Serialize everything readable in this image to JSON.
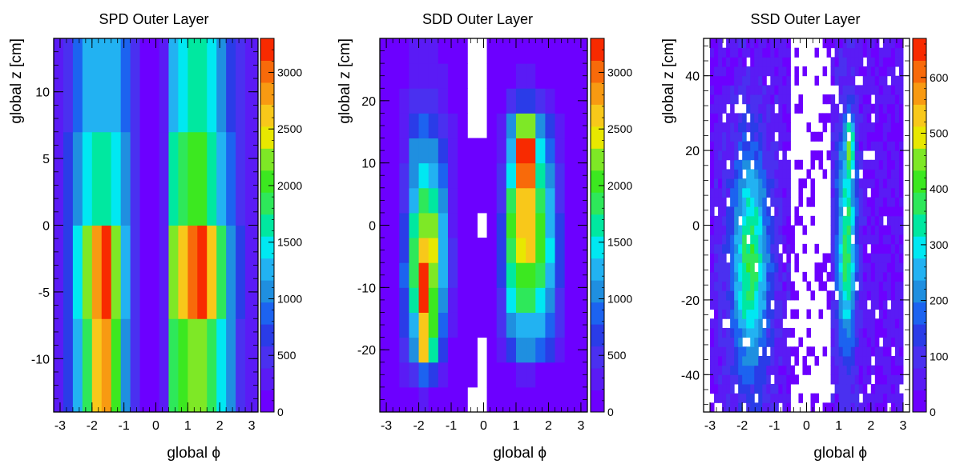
{
  "palette": [
    "#6c00ff",
    "#5a1bf5",
    "#4a30f0",
    "#2a3ce8",
    "#1c63f0",
    "#1f8fe0",
    "#22b2f2",
    "#00e8f2",
    "#00e8a0",
    "#2ee85a",
    "#3ce820",
    "#7ee826",
    "#e8e800",
    "#f8c81a",
    "#f89a12",
    "#f86a0a",
    "#f82a00"
  ],
  "chart_data": [
    {
      "type": "heatmap",
      "title": "SPD Outer Layer",
      "xlabel": "global  ϕ",
      "ylabel": "global z [cm]",
      "xlim": [
        -3.2,
        3.2
      ],
      "ylim": [
        -14,
        14
      ],
      "xticks": [
        "-3",
        "-2",
        "-1",
        "0",
        "1",
        "2",
        "3"
      ],
      "yticks": [
        "-10",
        "-5",
        "0",
        "5",
        "10"
      ],
      "colorbar": {
        "max": 3300,
        "ticks": [
          "0",
          "500",
          "1000",
          "1500",
          "2000",
          "2500",
          "3000"
        ]
      },
      "x_edges": [
        -3.2,
        -2.9,
        -2.6,
        -2.3,
        -2.0,
        -1.7,
        -1.4,
        -1.1,
        -0.8,
        -0.5,
        -0.2,
        0.1,
        0.4,
        0.7,
        1.0,
        1.3,
        1.6,
        1.9,
        2.2,
        2.5,
        2.8,
        3.2
      ],
      "y_edges": [
        -14,
        -7,
        0,
        7,
        14
      ],
      "values": [
        [
          200,
          600,
          1200,
          1900,
          2600,
          2900,
          2000,
          1100,
          400,
          150,
          150,
          300,
          1900,
          2100,
          2200,
          2200,
          1900,
          1500,
          1000,
          500,
          200
        ],
        [
          250,
          700,
          1400,
          2200,
          2800,
          3300,
          2300,
          1300,
          500,
          150,
          150,
          350,
          2300,
          2700,
          3000,
          3300,
          2700,
          1800,
          1100,
          600,
          200
        ],
        [
          200,
          600,
          1000,
          1500,
          1700,
          1700,
          1500,
          1000,
          400,
          150,
          150,
          250,
          1600,
          1800,
          2000,
          2000,
          1700,
          1300,
          800,
          400,
          200
        ],
        [
          200,
          500,
          900,
          1200,
          1300,
          1200,
          1200,
          900,
          400,
          150,
          150,
          200,
          1200,
          1500,
          1700,
          1700,
          1400,
          1100,
          700,
          400,
          200
        ]
      ]
    },
    {
      "type": "heatmap",
      "title": "SDD Outer Layer",
      "xlabel": "global  ϕ",
      "ylabel": "global z [cm]",
      "xlim": [
        -3.2,
        3.2
      ],
      "ylim": [
        -30,
        30
      ],
      "xticks": [
        "-3",
        "-2",
        "-1",
        "0",
        "1",
        "2",
        "3"
      ],
      "yticks": [
        "-20",
        "-10",
        "0",
        "10",
        "20"
      ],
      "colorbar": {
        "max": 3300,
        "ticks": [
          "0",
          "500",
          "1000",
          "1500",
          "2000",
          "2500",
          "3000"
        ]
      },
      "x_edges": [
        -3.2,
        -2.9,
        -2.6,
        -2.3,
        -2.0,
        -1.7,
        -1.4,
        -1.1,
        -0.8,
        -0.5,
        -0.2,
        0.1,
        0.4,
        0.7,
        1.0,
        1.3,
        1.6,
        1.9,
        2.2,
        2.5,
        2.8,
        3.2
      ],
      "y_edges": [
        -30,
        -26,
        -22,
        -18,
        -14,
        -10,
        -6,
        -2,
        2,
        6,
        10,
        14,
        18,
        22,
        26,
        30
      ],
      "values": [
        [
          100,
          100,
          100,
          150,
          250,
          150,
          100,
          100,
          100,
          0,
          0,
          100,
          100,
          100,
          100,
          100,
          100,
          100,
          100,
          100,
          100
        ],
        [
          100,
          100,
          200,
          500,
          900,
          700,
          200,
          100,
          100,
          100,
          0,
          100,
          100,
          150,
          250,
          250,
          150,
          100,
          100,
          100,
          100
        ],
        [
          100,
          100,
          500,
          1100,
          2600,
          1700,
          600,
          100,
          100,
          100,
          0,
          100,
          300,
          700,
          1100,
          1100,
          900,
          600,
          300,
          100,
          100
        ],
        [
          100,
          100,
          600,
          1300,
          2700,
          2000,
          900,
          200,
          100,
          100,
          100,
          100,
          400,
          1100,
          1300,
          1300,
          1200,
          800,
          400,
          100,
          100
        ],
        [
          100,
          100,
          700,
          1600,
          3200,
          2100,
          1000,
          300,
          100,
          100,
          100,
          100,
          500,
          1400,
          1800,
          1800,
          1500,
          1000,
          500,
          100,
          100
        ],
        [
          100,
          100,
          800,
          1800,
          3300,
          2300,
          1200,
          400,
          100,
          100,
          100,
          100,
          600,
          1700,
          2100,
          2100,
          1800,
          1300,
          600,
          100,
          100
        ],
        [
          100,
          100,
          700,
          1800,
          2600,
          2400,
          1300,
          400,
          100,
          100,
          100,
          100,
          600,
          1900,
          2500,
          2600,
          2000,
          1400,
          600,
          100,
          100
        ],
        [
          100,
          100,
          600,
          1700,
          2200,
          2200,
          1300,
          300,
          100,
          100,
          0,
          100,
          600,
          2000,
          2600,
          2700,
          2000,
          1300,
          600,
          100,
          100
        ],
        [
          100,
          100,
          500,
          1300,
          1800,
          1700,
          1000,
          300,
          100,
          100,
          100,
          100,
          500,
          1800,
          2600,
          2700,
          1800,
          1200,
          500,
          100,
          100
        ],
        [
          100,
          100,
          400,
          1100,
          1400,
          1300,
          800,
          200,
          100,
          100,
          100,
          100,
          400,
          1400,
          3000,
          3000,
          1700,
          1000,
          400,
          100,
          100
        ],
        [
          100,
          100,
          300,
          1000,
          1100,
          1000,
          700,
          200,
          100,
          100,
          100,
          100,
          300,
          1200,
          3200,
          3200,
          1500,
          800,
          300,
          100,
          100
        ],
        [
          100,
          100,
          300,
          700,
          800,
          700,
          500,
          200,
          100,
          0,
          0,
          100,
          200,
          1000,
          2200,
          2200,
          1000,
          600,
          200,
          100,
          100
        ],
        [
          100,
          100,
          200,
          500,
          500,
          500,
          300,
          100,
          100,
          0,
          0,
          100,
          100,
          400,
          700,
          700,
          400,
          200,
          100,
          100,
          100
        ],
        [
          100,
          100,
          100,
          300,
          300,
          300,
          200,
          100,
          100,
          0,
          0,
          100,
          100,
          100,
          200,
          200,
          100,
          100,
          100,
          100,
          100
        ],
        [
          100,
          100,
          100,
          200,
          200,
          200,
          100,
          100,
          100,
          0,
          0,
          100,
          100,
          100,
          100,
          100,
          100,
          100,
          100,
          100,
          100
        ]
      ]
    },
    {
      "type": "heatmap",
      "title": "SSD Outer Layer",
      "xlabel": "global  ϕ",
      "ylabel": "global z [cm]",
      "xlim": [
        -3.2,
        3.2
      ],
      "ylim": [
        -50,
        50
      ],
      "xticks": [
        "-3",
        "-2",
        "-1",
        "0",
        "1",
        "2",
        "3"
      ],
      "yticks": [
        "-40",
        "-20",
        "0",
        "20",
        "40"
      ],
      "colorbar": {
        "max": 670,
        "ticks": [
          "0",
          "100",
          "200",
          "300",
          "400",
          "500",
          "600"
        ]
      },
      "grid": {
        "xmin": -3.0,
        "xmax": 3.0,
        "nx": 48,
        "zmin": -50,
        "zmax": 50,
        "nz": 40
      },
      "blobs": [
        {
          "phi": -1.75,
          "z": -10,
          "sphi": 0.42,
          "sz": 22,
          "amp": 330
        },
        {
          "phi": 1.25,
          "z": -5,
          "sphi": 0.22,
          "sz": 22,
          "amp": 330
        },
        {
          "phi": 1.35,
          "z": 22,
          "sphi": 0.08,
          "sz": 5,
          "amp": 300
        }
      ],
      "noise": 60,
      "gap": {
        "phi_min": -0.45,
        "phi_max": 0.75,
        "level": 0
      }
    }
  ]
}
